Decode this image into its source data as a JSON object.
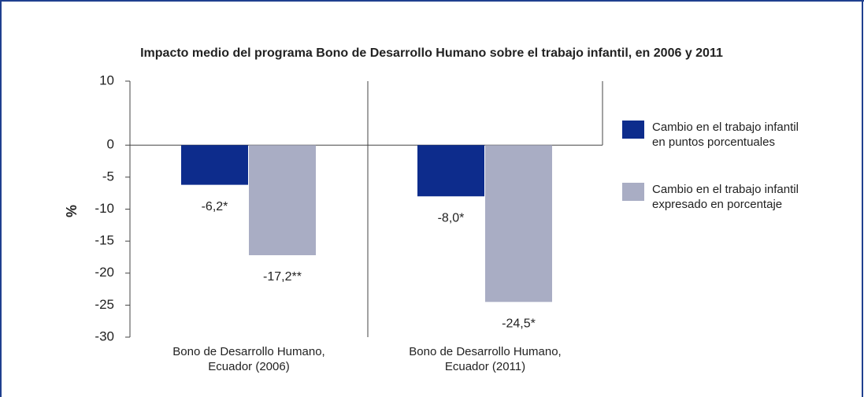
{
  "chart_data": {
    "type": "bar",
    "title": "Impacto medio del programa Bono de Desarrollo Humano sobre el trabajo infantil, en 2006 y 2011",
    "ylabel": "%",
    "categories": [
      "Bono de Desarrollo Humano, Ecuador (2006)",
      "Bono de Desarrollo Humano, Ecuador (2011)"
    ],
    "series": [
      {
        "name": "Cambio en el trabajo infantil en puntos porcentuales",
        "color": "#0d2c8c",
        "values": [
          -6.2,
          -8.0
        ],
        "value_labels": [
          "-6,2*",
          "-8,0*"
        ]
      },
      {
        "name": "Cambio en el trabajo infantil expresado en porcentaje",
        "color": "#a9adc4",
        "values": [
          -17.2,
          -24.5
        ],
        "value_labels": [
          "-17,2**",
          "-24,5*"
        ]
      }
    ],
    "ylim": [
      -30,
      10
    ],
    "yticks": [
      10,
      0,
      -5,
      -10,
      -15,
      -20,
      -25,
      -30
    ],
    "legend": "right"
  }
}
